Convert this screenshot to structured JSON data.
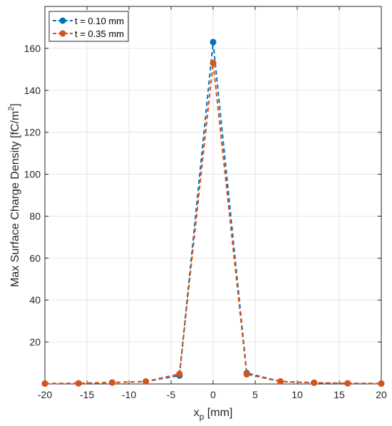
{
  "chart_data": {
    "type": "line",
    "title": "",
    "xlabel_main": "x",
    "xlabel_sub": "p",
    "xlabel_unit": " [mm]",
    "ylabel_main": "Max Surface Charge Density [fC/m",
    "ylabel_sup": "2",
    "ylabel_end": "]",
    "xlim": [
      -20,
      20
    ],
    "ylim": [
      0,
      180
    ],
    "xticks": [
      -20,
      -15,
      -10,
      -5,
      0,
      5,
      10,
      15,
      20
    ],
    "xtick_labels": [
      "-20",
      "-15",
      "-10",
      "-5",
      "0",
      "5",
      "10",
      "15",
      "20"
    ],
    "yticks": [
      20,
      40,
      60,
      80,
      100,
      120,
      140,
      160
    ],
    "ytick_labels": [
      "20",
      "40",
      "60",
      "80",
      "100",
      "120",
      "140",
      "160"
    ],
    "grid": true,
    "legend_position": "top-left",
    "series": [
      {
        "name": "t = 0.10 mm",
        "color": "#0072BD",
        "line_style": "dashed",
        "marker": "circle",
        "x": [
          -20,
          -16,
          -12,
          -8,
          -4,
          0,
          4,
          8,
          12,
          16,
          20
        ],
        "y": [
          0.2,
          0.3,
          0.7,
          1.2,
          4.0,
          163,
          5.2,
          1.2,
          0.6,
          0.3,
          0.2
        ]
      },
      {
        "name": "t = 0.35 mm",
        "color": "#D95319",
        "line_style": "dashed",
        "marker": "circle",
        "x": [
          -20,
          -16,
          -12,
          -8,
          -4,
          0,
          4,
          8,
          12,
          16,
          20
        ],
        "y": [
          0.2,
          0.3,
          0.7,
          1.2,
          4.8,
          153,
          4.6,
          1.2,
          0.6,
          0.3,
          0.2
        ]
      }
    ]
  }
}
